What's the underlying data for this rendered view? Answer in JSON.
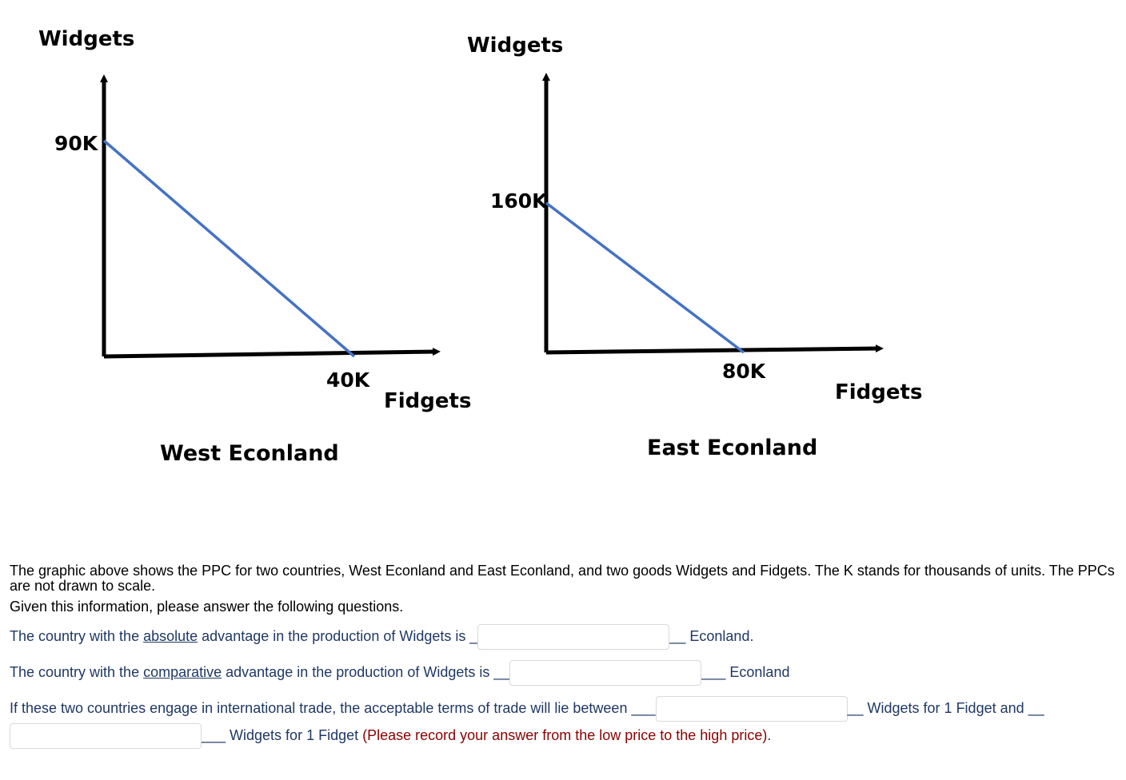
{
  "chart_data": [
    {
      "type": "line",
      "title": "West Econland",
      "xlabel": "Fidgets",
      "ylabel": "Widgets",
      "series": [
        {
          "x": [
            0,
            40
          ],
          "y": [
            90,
            0
          ]
        }
      ],
      "x_tick_label": "40K",
      "y_tick_label": "90K",
      "color": "#4472c4"
    },
    {
      "type": "line",
      "title": "East Econland",
      "xlabel": "Fidgets",
      "ylabel": "Widgets",
      "series": [
        {
          "x": [
            0,
            80
          ],
          "y": [
            160,
            0
          ]
        }
      ],
      "x_tick_label": "80K",
      "y_tick_label": "160K",
      "color": "#4472c4"
    }
  ],
  "intro": {
    "line1": "The graphic above shows the PPC for two countries, West Econland and East Econland, and two goods Widgets and Fidgets.  The K stands for thousands of units. The PPCs are not drawn to scale.",
    "line2": "Given this information, please answer the following questions."
  },
  "q1": {
    "pre": "The country with the ",
    "link": "absolute",
    "mid": " advantage in the production of Widgets is _",
    "post": "__ Econland."
  },
  "q2": {
    "pre": "The country with the ",
    "link": "comparative",
    "mid": " advantage in the production of Widgets is __",
    "post": "___ Econland"
  },
  "q3": {
    "pre": "If these two countries engage in international trade, the acceptable terms of trade will lie between ___",
    "mid": "__ Widgets for 1 Fidget and __",
    "post": "___ Widgets for 1 Fidget ",
    "note": "(Please record your answer from the low price to the high price)",
    "end": "."
  }
}
